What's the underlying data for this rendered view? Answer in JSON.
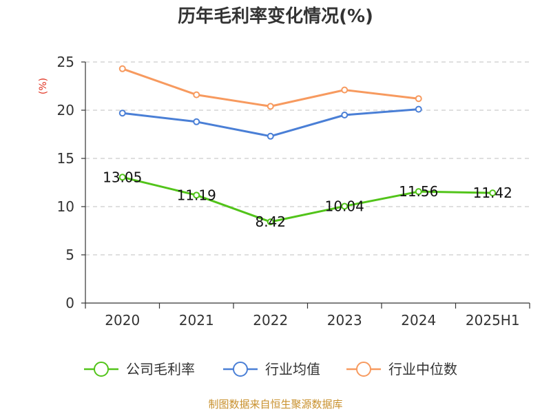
{
  "chart_data": {
    "type": "line",
    "title": "历年毛利率变化情况(%)",
    "ylabel": "(%)",
    "xlabel": "",
    "categories": [
      "2020",
      "2021",
      "2022",
      "2023",
      "2024",
      "2025H1"
    ],
    "ylim": [
      0,
      25
    ],
    "yticks": [
      0,
      5,
      10,
      15,
      20,
      25
    ],
    "grid": "horizontal dashed",
    "legend_position": "bottom",
    "series": [
      {
        "name": "公司毛利率",
        "color": "#52c41a",
        "values": [
          13.05,
          11.19,
          8.42,
          10.04,
          11.56,
          11.42
        ],
        "labels": [
          "13.05",
          "11.19",
          "8.42",
          "10.04",
          "11.56",
          "11.42"
        ]
      },
      {
        "name": "行业均值",
        "color": "#4a7fd6",
        "values": [
          19.7,
          18.8,
          17.3,
          19.5,
          20.1,
          null
        ]
      },
      {
        "name": "行业中位数",
        "color": "#f79a5f",
        "values": [
          24.3,
          21.6,
          20.4,
          22.1,
          21.2,
          null
        ]
      }
    ]
  },
  "source": "制图数据来自恒生聚源数据库"
}
